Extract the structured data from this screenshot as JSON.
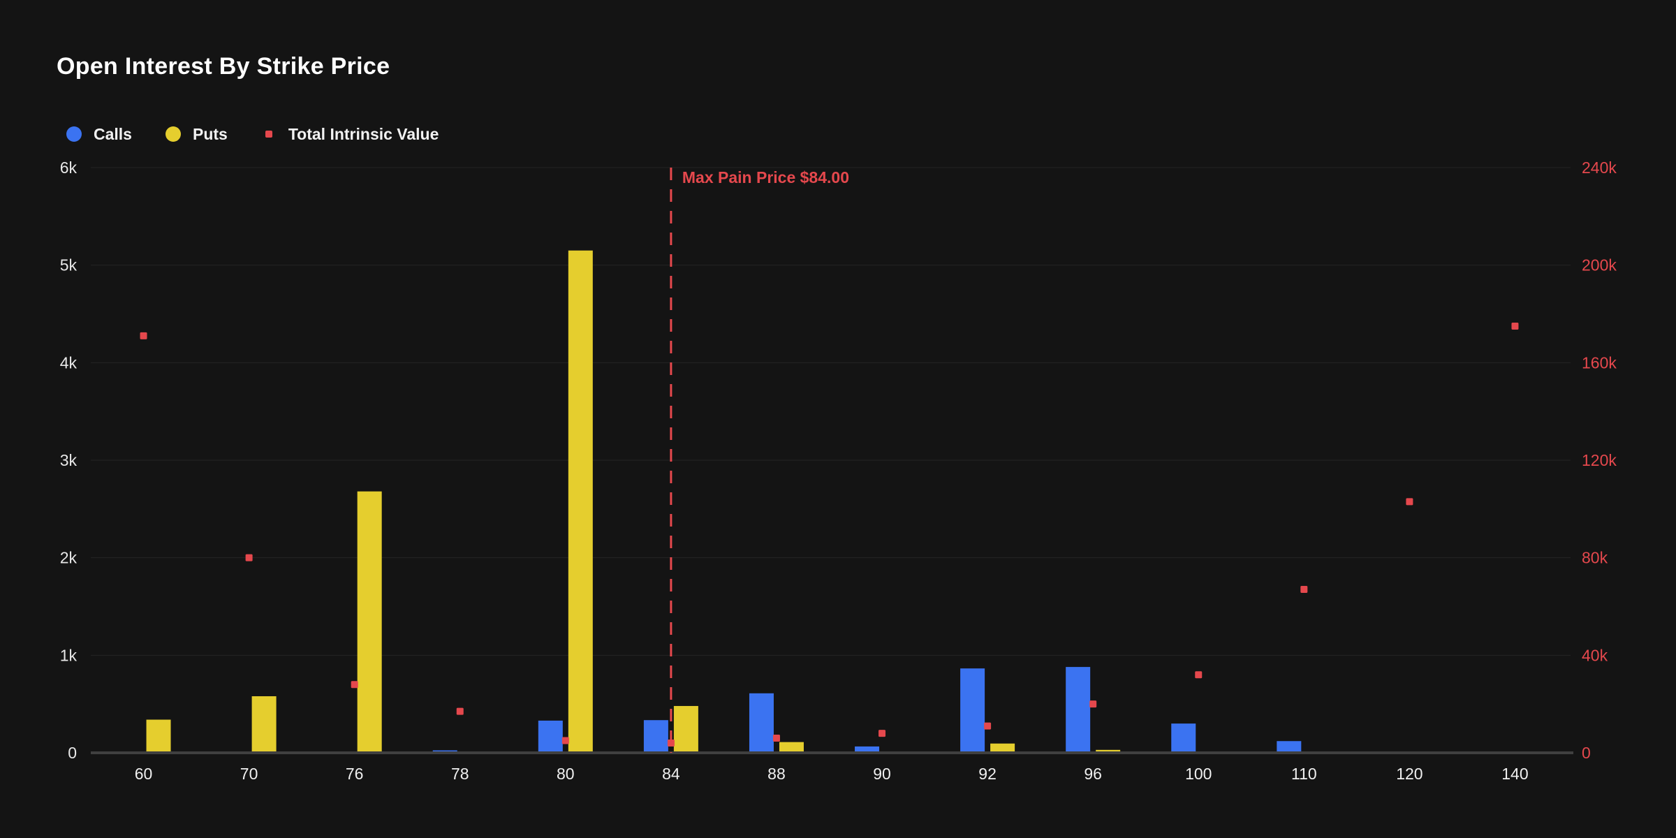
{
  "title": "Open Interest By Strike Price",
  "legend": {
    "items": [
      {
        "label": "Calls",
        "color": "#3b73f1",
        "shape": "circle"
      },
      {
        "label": "Puts",
        "color": "#e5ce2e",
        "shape": "circle"
      },
      {
        "label": "Total Intrinsic Value",
        "color": "#e5484d",
        "shape": "square"
      }
    ]
  },
  "colors": {
    "background": "#141414",
    "calls": "#3b73f1",
    "puts": "#e5ce2e",
    "intrinsic": "#e5484d",
    "axis_text": "#e8e8e8",
    "right_axis_text": "#e5484d"
  },
  "chart_data": {
    "type": "bar",
    "title": "Open Interest By Strike Price",
    "categories": [
      "60",
      "70",
      "76",
      "78",
      "80",
      "84",
      "88",
      "90",
      "92",
      "96",
      "100",
      "110",
      "120",
      "140"
    ],
    "series": [
      {
        "name": "Calls",
        "type": "bar",
        "axis": "left",
        "color": "#3b73f1",
        "values": [
          0,
          0,
          0,
          25,
          330,
          335,
          610,
          65,
          865,
          880,
          300,
          120,
          0,
          0
        ]
      },
      {
        "name": "Puts",
        "type": "bar",
        "axis": "left",
        "color": "#e5ce2e",
        "values": [
          340,
          580,
          2680,
          0,
          5150,
          480,
          110,
          0,
          95,
          30,
          0,
          0,
          0,
          0
        ]
      },
      {
        "name": "Total Intrinsic Value",
        "type": "scatter",
        "axis": "right",
        "color": "#e5484d",
        "values": [
          171000,
          80000,
          28000,
          17000,
          5000,
          4000,
          6000,
          8000,
          11000,
          20000,
          32000,
          67000,
          103000,
          175000
        ]
      }
    ],
    "left_axis": {
      "ticks": [
        "6k",
        "5k",
        "4k",
        "3k",
        "2k",
        "1k",
        "0"
      ],
      "min": 0,
      "max": 6000
    },
    "right_axis": {
      "ticks": [
        "240k",
        "200k",
        "160k",
        "120k",
        "80k",
        "40k",
        "0"
      ],
      "min": 0,
      "max": 240000
    },
    "grid": "horizontal-only",
    "legend_position": "top-left",
    "annotation": {
      "label": "Max Pain Price $84.00",
      "category": "84",
      "value": "84.00",
      "color": "#e5484d"
    }
  }
}
